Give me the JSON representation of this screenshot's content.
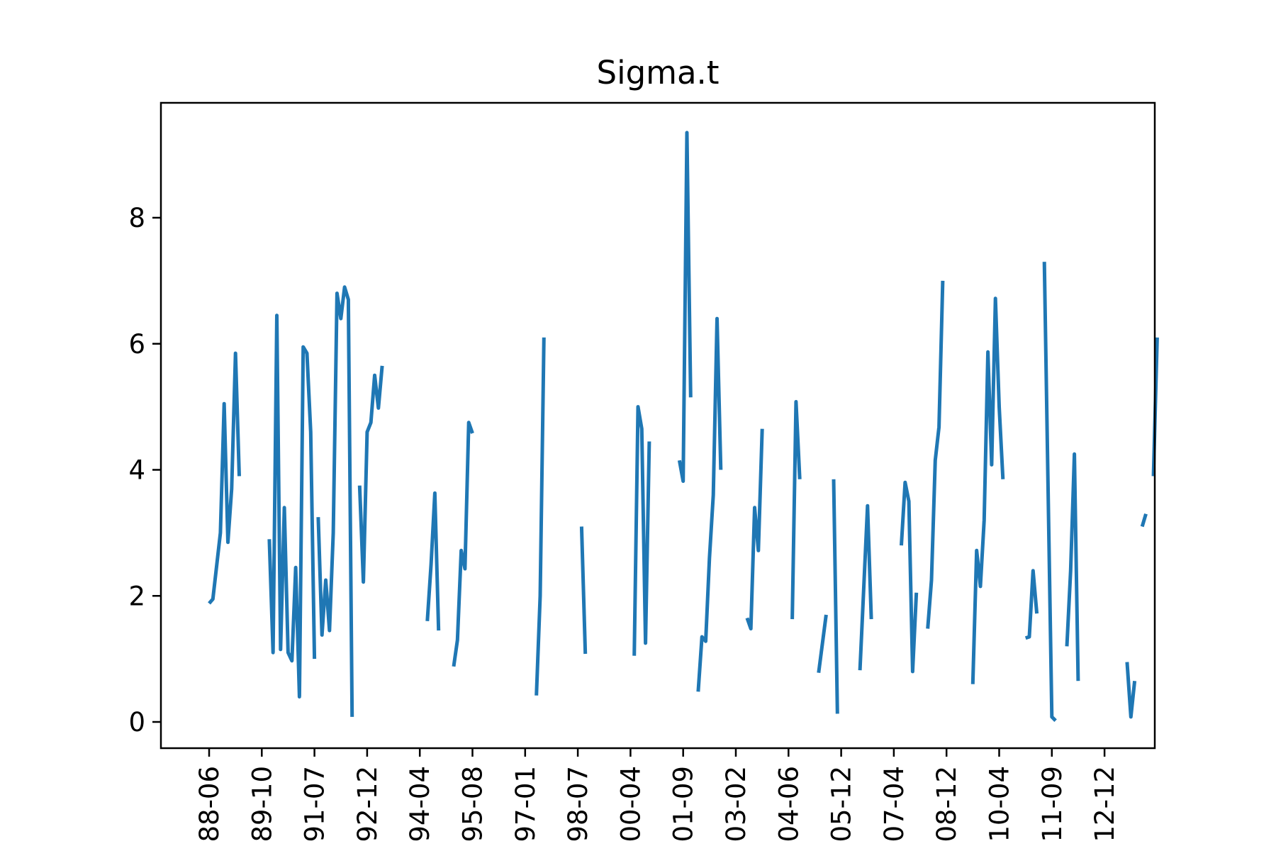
{
  "chart_data": {
    "type": "line",
    "title": "Sigma.t",
    "xlabel": "",
    "ylabel": "",
    "ylim": [
      -0.4,
      9.8
    ],
    "yticks": [
      0,
      2,
      4,
      6,
      8
    ],
    "xticks": [
      "88-06",
      "89-10",
      "91-07",
      "92-12",
      "94-04",
      "95-08",
      "97-01",
      "98-07",
      "00-04",
      "01-09",
      "03-02",
      "04-06",
      "05-12",
      "07-04",
      "08-12",
      "10-04",
      "11-09",
      "12-12"
    ],
    "grid": false,
    "line_color": "#1f77b4",
    "note": "x values are decimal years estimated from the axis; series has gaps (missing data) separating segments",
    "series": [
      {
        "segments": [
          [
            [
              1988.0,
              1.88
            ],
            [
              1988.1,
              1.95
            ],
            [
              1988.3,
              3.0
            ],
            [
              1988.4,
              5.05
            ],
            [
              1988.5,
              2.85
            ],
            [
              1988.6,
              3.7
            ],
            [
              1988.7,
              5.85
            ],
            [
              1988.8,
              3.9
            ]
          ],
          [
            [
              1989.6,
              2.9
            ],
            [
              1989.7,
              1.1
            ],
            [
              1989.8,
              6.45
            ],
            [
              1989.9,
              1.15
            ],
            [
              1990.0,
              3.4
            ],
            [
              1990.1,
              1.1
            ],
            [
              1990.2,
              0.97
            ],
            [
              1990.3,
              2.45
            ],
            [
              1990.4,
              0.4
            ],
            [
              1990.5,
              5.95
            ],
            [
              1990.6,
              5.85
            ],
            [
              1990.7,
              4.6
            ],
            [
              1990.8,
              1.0
            ]
          ],
          [
            [
              1990.9,
              3.25
            ],
            [
              1991.0,
              1.38
            ],
            [
              1991.1,
              2.25
            ],
            [
              1991.2,
              1.45
            ],
            [
              1991.3,
              3.0
            ],
            [
              1991.4,
              6.8
            ],
            [
              1991.5,
              6.4
            ],
            [
              1991.6,
              6.9
            ],
            [
              1991.7,
              6.7
            ],
            [
              1991.8,
              0.08
            ]
          ],
          [
            [
              1992.0,
              3.75
            ],
            [
              1992.1,
              2.22
            ],
            [
              1992.2,
              4.6
            ],
            [
              1992.3,
              4.75
            ],
            [
              1992.4,
              5.5
            ],
            [
              1992.5,
              4.98
            ],
            [
              1992.6,
              5.65
            ]
          ],
          [
            [
              1993.8,
              1.6
            ],
            [
              1993.9,
              2.5
            ],
            [
              1994.0,
              3.63
            ],
            [
              1994.1,
              1.45
            ]
          ],
          [
            [
              1994.5,
              0.88
            ],
            [
              1994.6,
              1.3
            ],
            [
              1994.7,
              2.72
            ],
            [
              1994.8,
              2.43
            ],
            [
              1994.9,
              4.75
            ],
            [
              1995.0,
              4.58
            ]
          ],
          [
            [
              1996.7,
              0.42
            ],
            [
              1996.8,
              2.0
            ],
            [
              1996.9,
              6.1
            ]
          ],
          [
            [
              1997.9,
              3.1
            ],
            [
              1998.0,
              1.08
            ]
          ],
          [
            [
              1999.3,
              1.05
            ],
            [
              1999.4,
              5.0
            ],
            [
              1999.5,
              4.65
            ],
            [
              1999.6,
              1.25
            ],
            [
              1999.7,
              4.45
            ]
          ],
          [
            [
              2000.5,
              4.15
            ],
            [
              2000.6,
              3.82
            ],
            [
              2000.7,
              9.35
            ],
            [
              2000.8,
              5.15
            ]
          ],
          [
            [
              2001.0,
              0.48
            ],
            [
              2001.1,
              1.35
            ],
            [
              2001.2,
              1.28
            ],
            [
              2001.3,
              2.6
            ],
            [
              2001.4,
              3.6
            ],
            [
              2001.5,
              6.4
            ],
            [
              2001.6,
              4.0
            ]
          ],
          [
            [
              2002.3,
              1.65
            ],
            [
              2002.4,
              1.48
            ],
            [
              2002.5,
              3.4
            ],
            [
              2002.6,
              2.72
            ],
            [
              2002.7,
              4.65
            ]
          ],
          [
            [
              2003.5,
              1.63
            ],
            [
              2003.6,
              5.08
            ],
            [
              2003.7,
              3.85
            ]
          ],
          [
            [
              2004.2,
              0.78
            ],
            [
              2004.4,
              1.7
            ]
          ],
          [
            [
              2004.6,
              3.85
            ],
            [
              2004.7,
              0.13
            ]
          ],
          [
            [
              2005.3,
              0.82
            ],
            [
              2005.5,
              3.43
            ],
            [
              2005.6,
              1.63
            ]
          ],
          [
            [
              2006.4,
              2.8
            ],
            [
              2006.5,
              3.8
            ],
            [
              2006.6,
              3.5
            ],
            [
              2006.7,
              0.8
            ],
            [
              2006.8,
              2.05
            ]
          ],
          [
            [
              2007.1,
              1.48
            ],
            [
              2007.2,
              2.25
            ],
            [
              2007.3,
              4.15
            ],
            [
              2007.4,
              4.68
            ],
            [
              2007.5,
              7.0
            ]
          ],
          [
            [
              2008.3,
              0.6
            ],
            [
              2008.4,
              2.72
            ],
            [
              2008.5,
              2.15
            ],
            [
              2008.6,
              3.2
            ],
            [
              2008.7,
              5.87
            ],
            [
              2008.8,
              4.08
            ],
            [
              2008.9,
              6.72
            ],
            [
              2009.0,
              5.0
            ],
            [
              2009.1,
              3.85
            ]
          ],
          [
            [
              2009.7,
              1.33
            ],
            [
              2009.8,
              1.35
            ],
            [
              2009.9,
              2.4
            ],
            [
              2010.0,
              1.72
            ]
          ],
          [
            [
              2010.2,
              7.3
            ],
            [
              2010.4,
              0.08
            ],
            [
              2010.5,
              0.02
            ]
          ],
          [
            [
              2010.8,
              1.2
            ],
            [
              2010.9,
              2.4
            ],
            [
              2011.0,
              4.25
            ],
            [
              2011.1,
              0.65
            ]
          ],
          [
            [
              2012.4,
              0.95
            ],
            [
              2012.5,
              0.08
            ],
            [
              2012.6,
              0.65
            ]
          ],
          [
            [
              2012.8,
              3.1
            ],
            [
              2012.9,
              3.3
            ]
          ],
          [
            [
              2013.1,
              3.9
            ],
            [
              2013.2,
              6.1
            ]
          ]
        ]
      }
    ]
  }
}
